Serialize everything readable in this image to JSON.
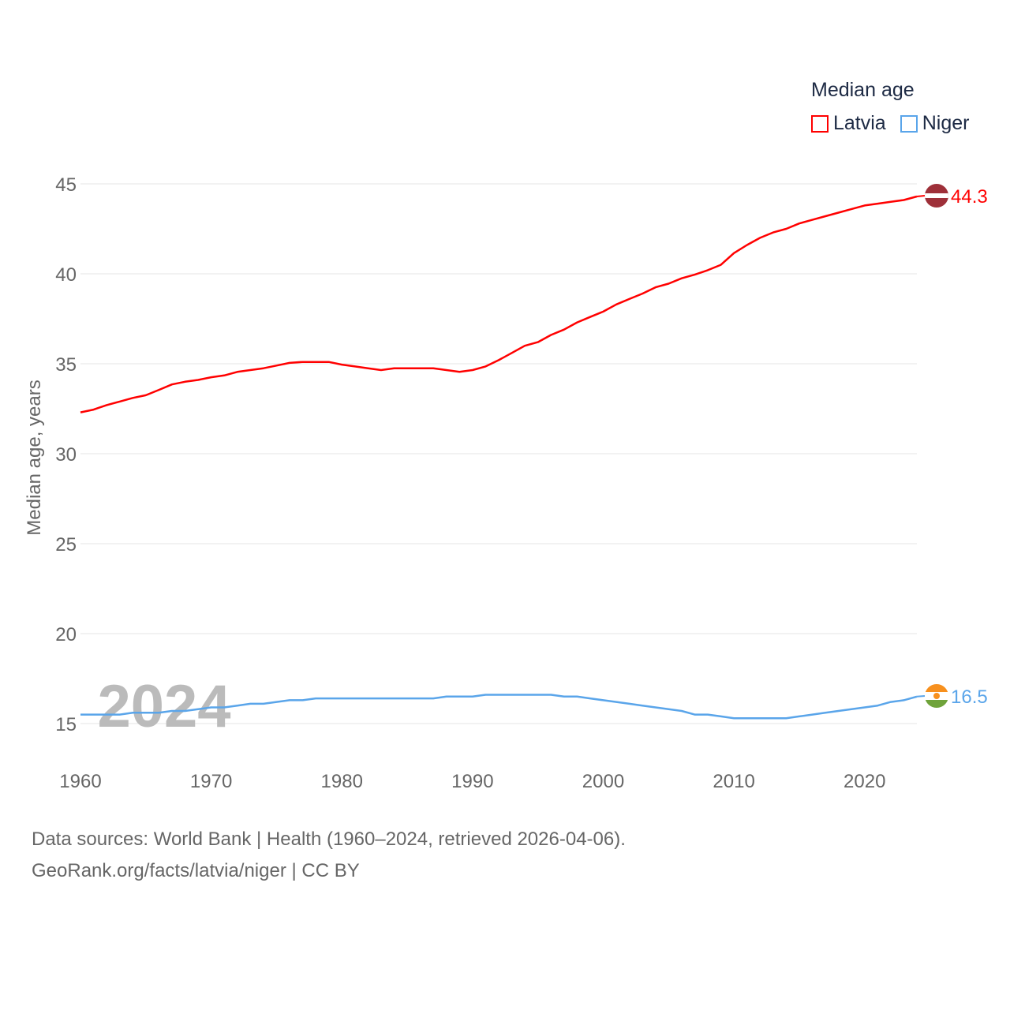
{
  "chart_data": {
    "type": "line",
    "title": "Median age",
    "xlabel": "",
    "ylabel": "Median age, years",
    "xlim": [
      1960,
      2024
    ],
    "ylim": [
      13,
      46
    ],
    "yticks": [
      15,
      20,
      25,
      30,
      35,
      40,
      45
    ],
    "xticks": [
      1960,
      1970,
      1980,
      1990,
      2000,
      2010,
      2020
    ],
    "grid": true,
    "legend_position": "top-right",
    "year_watermark": "2024",
    "x": [
      1960,
      1961,
      1962,
      1963,
      1964,
      1965,
      1966,
      1967,
      1968,
      1969,
      1970,
      1971,
      1972,
      1973,
      1974,
      1975,
      1976,
      1977,
      1978,
      1979,
      1980,
      1981,
      1982,
      1983,
      1984,
      1985,
      1986,
      1987,
      1988,
      1989,
      1990,
      1991,
      1992,
      1993,
      1994,
      1995,
      1996,
      1997,
      1998,
      1999,
      2000,
      2001,
      2002,
      2003,
      2004,
      2005,
      2006,
      2007,
      2008,
      2009,
      2010,
      2011,
      2012,
      2013,
      2014,
      2015,
      2016,
      2017,
      2018,
      2019,
      2020,
      2021,
      2022,
      2023,
      2024
    ],
    "series": [
      {
        "name": "Latvia",
        "color": "#ff0000",
        "end_label": "44.3",
        "values": [
          32.3,
          32.45,
          32.7,
          32.9,
          33.1,
          33.25,
          33.55,
          33.85,
          34.0,
          34.1,
          34.25,
          34.35,
          34.55,
          34.65,
          34.75,
          34.9,
          35.05,
          35.1,
          35.1,
          35.1,
          34.95,
          34.85,
          34.75,
          34.65,
          34.75,
          34.75,
          34.75,
          34.75,
          34.65,
          34.55,
          34.65,
          34.85,
          35.2,
          35.6,
          36.0,
          36.2,
          36.6,
          36.9,
          37.3,
          37.6,
          37.9,
          38.3,
          38.6,
          38.9,
          39.25,
          39.45,
          39.75,
          39.95,
          40.2,
          40.5,
          41.15,
          41.6,
          42.0,
          42.3,
          42.5,
          42.8,
          43.0,
          43.2,
          43.4,
          43.6,
          43.8,
          43.9,
          44.0,
          44.1,
          44.3
        ]
      },
      {
        "name": "Niger",
        "color": "#5aa5ea",
        "end_label": "16.5",
        "values": [
          15.5,
          15.5,
          15.5,
          15.5,
          15.6,
          15.6,
          15.6,
          15.7,
          15.7,
          15.8,
          15.9,
          15.9,
          16.0,
          16.1,
          16.1,
          16.2,
          16.3,
          16.3,
          16.4,
          16.4,
          16.4,
          16.4,
          16.4,
          16.4,
          16.4,
          16.4,
          16.4,
          16.4,
          16.5,
          16.5,
          16.5,
          16.6,
          16.6,
          16.6,
          16.6,
          16.6,
          16.6,
          16.5,
          16.5,
          16.4,
          16.3,
          16.2,
          16.1,
          16.0,
          15.9,
          15.8,
          15.7,
          15.5,
          15.5,
          15.4,
          15.3,
          15.3,
          15.3,
          15.3,
          15.3,
          15.4,
          15.5,
          15.6,
          15.7,
          15.8,
          15.9,
          16.0,
          16.2,
          16.3,
          16.5
        ]
      }
    ]
  },
  "source_line1": "Data sources: World Bank | Health (1960–2024, retrieved 2026-04-06).",
  "source_line2": "GeoRank.org/facts/latvia/niger | CC BY"
}
